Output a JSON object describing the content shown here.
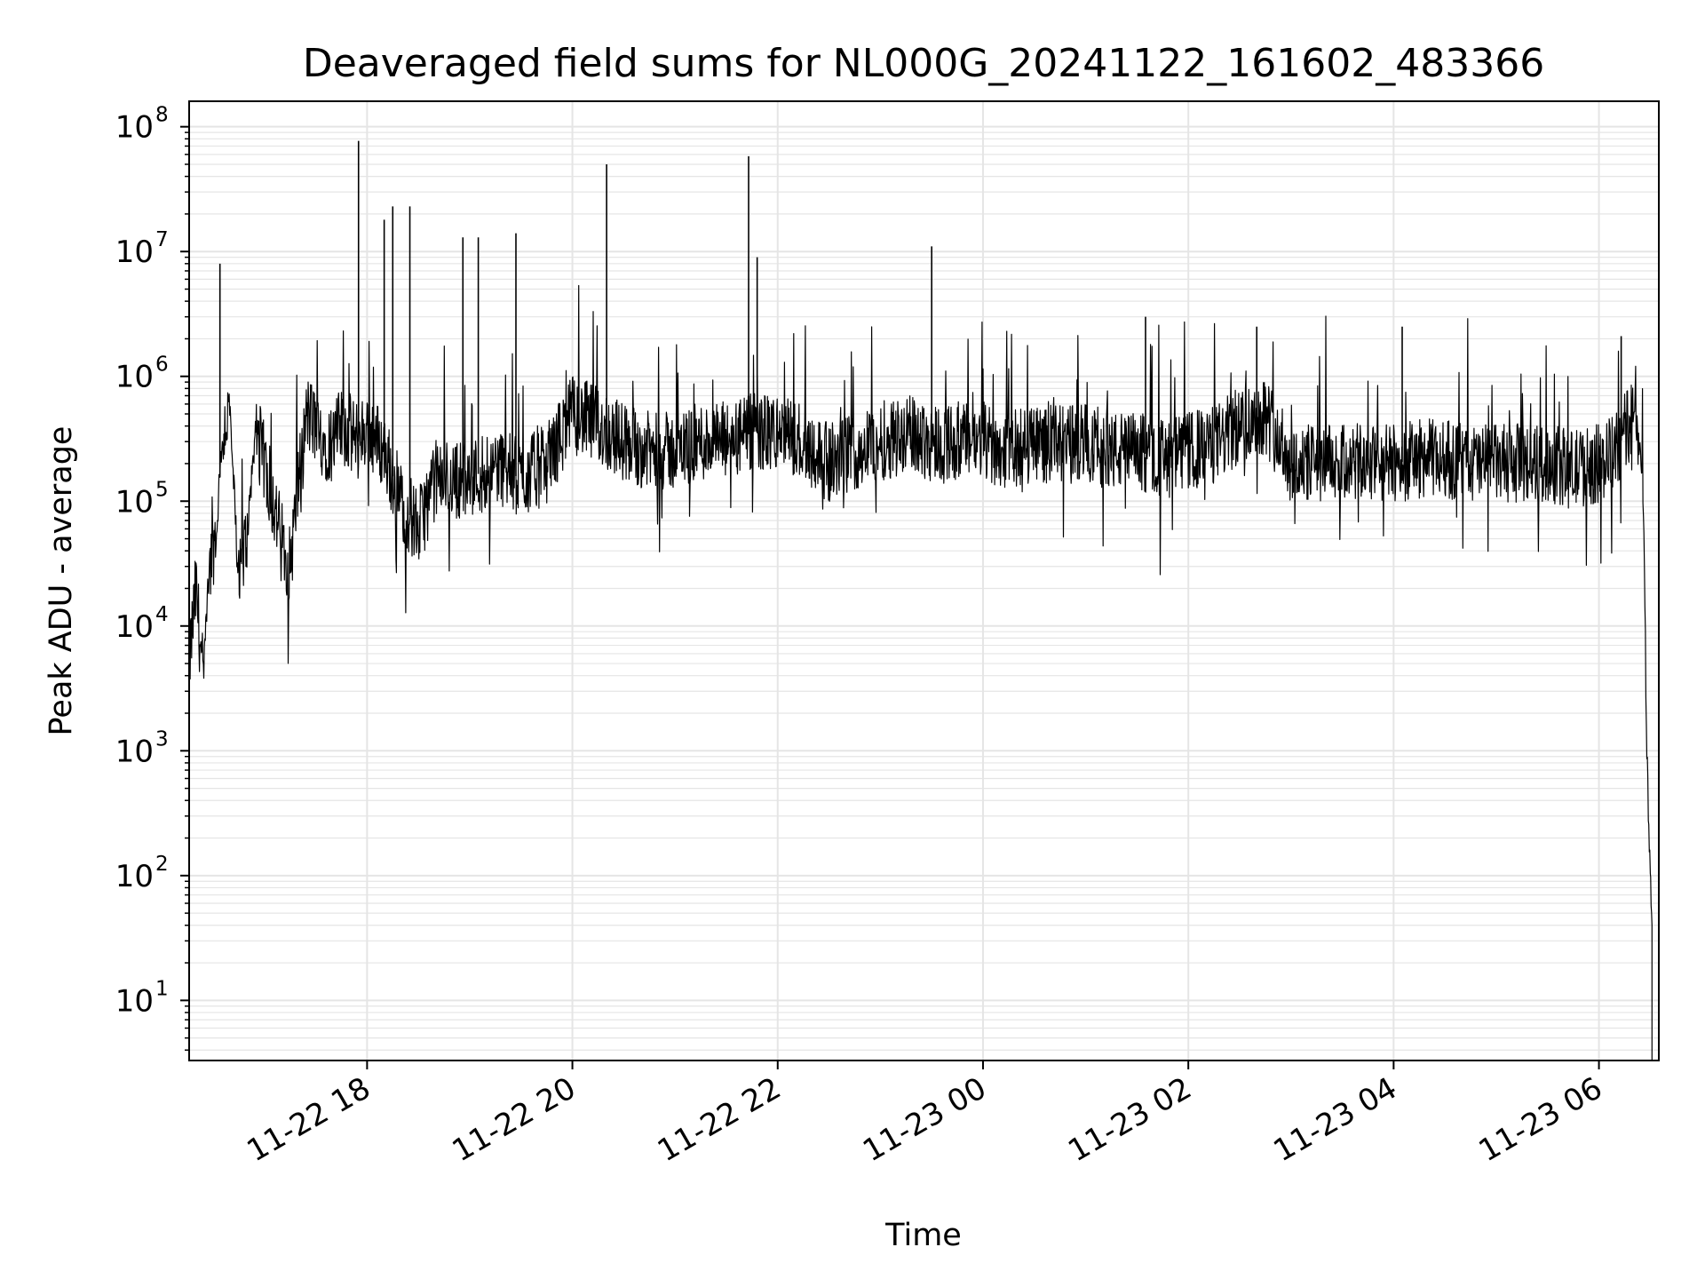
{
  "chart_data": {
    "type": "line",
    "title": "Deaveraged field sums for NL000G_20241122_161602_483366",
    "xlabel": "Time",
    "ylabel": "Peak ADU - average",
    "yscale": "log",
    "ylim": [
      3.3,
      160000000.0
    ],
    "xlim": [
      "2024-11-22 16:16",
      "2024-11-23 06:35"
    ],
    "grid": true,
    "x_ticks": [
      "11-22 18",
      "11-22 20",
      "11-22 22",
      "11-23 00",
      "11-23 02",
      "11-23 04",
      "11-23 06"
    ],
    "y_ticks": [
      {
        "base": "10",
        "exp": "1"
      },
      {
        "base": "10",
        "exp": "2"
      },
      {
        "base": "10",
        "exp": "3"
      },
      {
        "base": "10",
        "exp": "4"
      },
      {
        "base": "10",
        "exp": "5"
      },
      {
        "base": "10",
        "exp": "6"
      },
      {
        "base": "10",
        "exp": "7"
      },
      {
        "base": "10",
        "exp": "8"
      }
    ],
    "line_color": "#000000",
    "grid_color": "#e5e5e5",
    "series": [
      {
        "name": "",
        "x": [
          "2024-11-22 16:16",
          "2024-11-22 16:20",
          "2024-11-22 16:24",
          "2024-11-22 16:28",
          "2024-11-22 16:32",
          "2024-11-22 16:36",
          "2024-11-22 16:40",
          "2024-11-22 16:45",
          "2024-11-22 16:50",
          "2024-11-22 16:55",
          "2024-11-22 17:00",
          "2024-11-22 17:05",
          "2024-11-22 17:10",
          "2024-11-22 17:15",
          "2024-11-22 17:20",
          "2024-11-22 17:25",
          "2024-11-22 17:30",
          "2024-11-22 17:35",
          "2024-11-22 17:40",
          "2024-11-22 17:45",
          "2024-11-22 17:50",
          "2024-11-22 17:55",
          "2024-11-22 18:00",
          "2024-11-22 18:10",
          "2024-11-22 18:20",
          "2024-11-22 18:30",
          "2024-11-22 18:40",
          "2024-11-22 18:50",
          "2024-11-22 19:00",
          "2024-11-22 19:15",
          "2024-11-22 19:30",
          "2024-11-22 19:45",
          "2024-11-22 20:00",
          "2024-11-22 20:15",
          "2024-11-22 20:30",
          "2024-11-22 20:45",
          "2024-11-22 21:00",
          "2024-11-22 21:15",
          "2024-11-22 21:30",
          "2024-11-22 21:45",
          "2024-11-22 22:00",
          "2024-11-22 22:15",
          "2024-11-22 22:30",
          "2024-11-22 22:45",
          "2024-11-22 23:00",
          "2024-11-22 23:15",
          "2024-11-22 23:30",
          "2024-11-22 23:45",
          "2024-11-23 00:00",
          "2024-11-23 00:15",
          "2024-11-23 00:30",
          "2024-11-23 00:45",
          "2024-11-23 01:00",
          "2024-11-23 01:15",
          "2024-11-23 01:30",
          "2024-11-23 01:45",
          "2024-11-23 02:00",
          "2024-11-23 02:15",
          "2024-11-23 02:30",
          "2024-11-23 02:45",
          "2024-11-23 03:00",
          "2024-11-23 03:15",
          "2024-11-23 03:30",
          "2024-11-23 03:45",
          "2024-11-23 04:00",
          "2024-11-23 04:15",
          "2024-11-23 04:30",
          "2024-11-23 04:45",
          "2024-11-23 05:00",
          "2024-11-23 05:15",
          "2024-11-23 05:30",
          "2024-11-23 05:45",
          "2024-11-23 06:00",
          "2024-11-23 06:10",
          "2024-11-23 06:15",
          "2024-11-23 06:20",
          "2024-11-23 06:24",
          "2024-11-23 06:26",
          "2024-11-23 06:28",
          "2024-11-23 06:30",
          "2024-11-23 06:31"
        ],
        "y": [
          5000,
          20000,
          4000,
          30000,
          60000,
          400000,
          500000,
          20000,
          60000,
          400000,
          200000,
          100000,
          50000,
          30000,
          150000,
          500000,
          400000,
          300000,
          300000,
          400000,
          350000,
          300000,
          400000,
          250000,
          100000,
          60000,
          150000,
          150000,
          150000,
          200000,
          150000,
          200000,
          500000,
          400000,
          300000,
          250000,
          250000,
          300000,
          300000,
          350000,
          350000,
          300000,
          200000,
          250000,
          300000,
          350000,
          300000,
          300000,
          300000,
          250000,
          300000,
          280000,
          300000,
          250000,
          250000,
          220000,
          250000,
          280000,
          400000,
          500000,
          200000,
          200000,
          200000,
          200000,
          200000,
          220000,
          220000,
          200000,
          200000,
          200000,
          200000,
          180000,
          200000,
          250000,
          350000,
          500000,
          250000,
          100000,
          1000,
          100,
          40
        ]
      }
    ],
    "spikes": [
      {
        "x": "2024-11-22 16:34",
        "y": 8000000
      },
      {
        "x": "2024-11-22 17:55",
        "y": 77000000
      },
      {
        "x": "2024-11-22 18:10",
        "y": 18000000
      },
      {
        "x": "2024-11-22 18:15",
        "y": 23000000
      },
      {
        "x": "2024-11-22 18:25",
        "y": 23000000
      },
      {
        "x": "2024-11-22 18:56",
        "y": 13000000
      },
      {
        "x": "2024-11-22 19:05",
        "y": 13000000
      },
      {
        "x": "2024-11-22 19:27",
        "y": 14000000
      },
      {
        "x": "2024-11-22 20:20",
        "y": 50000000
      },
      {
        "x": "2024-11-22 21:43",
        "y": 58000000
      },
      {
        "x": "2024-11-22 21:48",
        "y": 9000000
      },
      {
        "x": "2024-11-22 23:30",
        "y": 11000000
      },
      {
        "x": "2024-11-23 01:35",
        "y": 3000000
      },
      {
        "x": "2024-11-23 02:40",
        "y": 2500000
      },
      {
        "x": "2024-11-23 04:05",
        "y": 2500000
      },
      {
        "x": "2024-11-23 06:13",
        "y": 2100000
      }
    ]
  }
}
